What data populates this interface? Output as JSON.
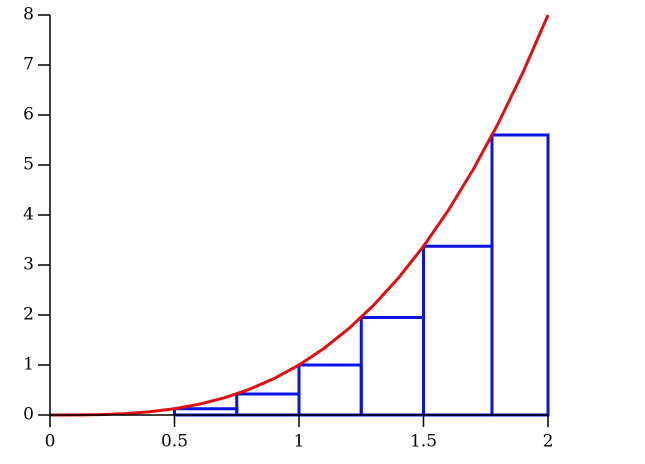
{
  "chart_data": {
    "type": "riemann",
    "x": [
      0,
      0.1,
      0.2,
      0.3,
      0.4,
      0.5,
      0.6,
      0.7,
      0.8,
      0.9,
      1,
      1.1,
      1.2,
      1.3,
      1.4,
      1.5,
      1.6,
      1.7,
      1.8,
      1.9,
      2
    ],
    "series": [
      {
        "color": "#e01010",
        "values": [
          0,
          0.001,
          0.008,
          0.027,
          0.064,
          0.125,
          0.216,
          0.343,
          0.512,
          0.729,
          1,
          1.331,
          1.728,
          2.197,
          2.744,
          3.375,
          4.096,
          4.913,
          5.832,
          6.859,
          8
        ]
      }
    ],
    "rectangles": {
      "color": "#0a14e0",
      "edges": [
        0,
        0.5,
        0.75,
        1,
        1.25,
        1.5,
        1.775,
        2
      ],
      "heights": [
        0,
        0.125,
        0.42,
        1,
        1.95,
        3.375,
        5.6
      ]
    },
    "xlim": [
      0,
      2
    ],
    "ylim": [
      0,
      8
    ],
    "xticks": [
      0,
      0.5,
      1,
      1.5,
      2
    ],
    "yticks": [
      0,
      1,
      2,
      3,
      4,
      5,
      6,
      7,
      8
    ]
  }
}
